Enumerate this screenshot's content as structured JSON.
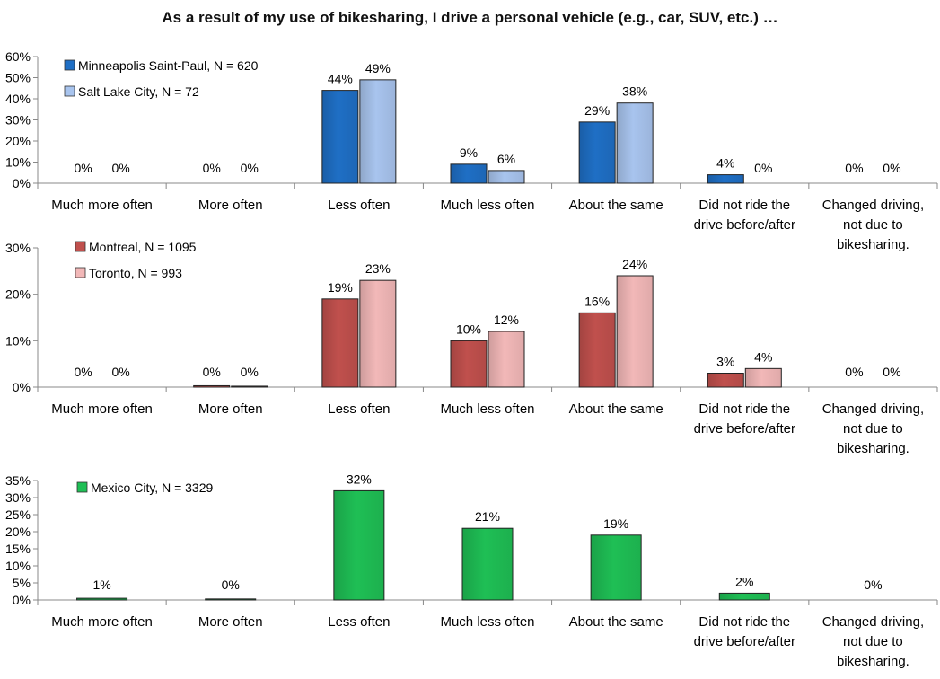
{
  "title": "As a result of my use of bikesharing, I drive a personal vehicle (e.g., car, SUV, etc.) …",
  "colors": {
    "msp": "#1f6fc5",
    "slc": "#a8c4ee",
    "montreal": "#c0504d",
    "toronto": "#f2b8b8",
    "mexico": "#1fbf55"
  },
  "chart_data": [
    {
      "type": "bar",
      "categories": [
        "Much more often",
        "More often",
        "Less often",
        "Much less often",
        "About the same",
        "Did not ride the drive before/after",
        "Changed driving, not due to bikesharing."
      ],
      "ylim": [
        0,
        60
      ],
      "yticks": [
        "0%",
        "10%",
        "20%",
        "30%",
        "40%",
        "50%",
        "60%"
      ],
      "ytick_values": [
        0,
        10,
        20,
        30,
        40,
        50,
        60
      ],
      "legend": "top-left",
      "series": [
        {
          "name": "Minneapolis Saint-Paul, N = 620",
          "values": [
            0,
            0,
            44,
            9,
            29,
            4,
            0
          ],
          "labels": [
            "0%",
            "0%",
            "44%",
            "9%",
            "29%",
            "4%",
            "0%"
          ]
        },
        {
          "name": "Salt Lake City, N = 72",
          "values": [
            0,
            0,
            49,
            6,
            38,
            0,
            0
          ],
          "labels": [
            "0%",
            "0%",
            "49%",
            "6%",
            "38%",
            "0%",
            "0%"
          ]
        }
      ]
    },
    {
      "type": "bar",
      "categories": [
        "Much more often",
        "More often",
        "Less often",
        "Much less often",
        "About the same",
        "Did not ride the drive before/after",
        "Changed driving, not due to bikesharing."
      ],
      "ylim": [
        0,
        30
      ],
      "yticks": [
        "0%",
        "10%",
        "20%",
        "30%"
      ],
      "ytick_values": [
        0,
        10,
        20,
        30
      ],
      "legend": "top-left",
      "series": [
        {
          "name": "Montreal, N = 1095",
          "values": [
            0,
            0.3,
            19,
            10,
            16,
            3,
            0
          ],
          "labels": [
            "0%",
            "0%",
            "19%",
            "10%",
            "16%",
            "3%",
            "0%"
          ]
        },
        {
          "name": "Toronto, N = 993",
          "values": [
            0,
            0.2,
            23,
            12,
            24,
            4,
            0
          ],
          "labels": [
            "0%",
            "0%",
            "23%",
            "12%",
            "24%",
            "4%",
            "0%"
          ]
        }
      ]
    },
    {
      "type": "bar",
      "categories": [
        "Much more often",
        "More often",
        "Less often",
        "Much less often",
        "About the same",
        "Did not ride the drive before/after",
        "Changed driving, not due to bikesharing."
      ],
      "ylim": [
        0,
        35
      ],
      "yticks": [
        "0%",
        "5%",
        "10%",
        "15%",
        "20%",
        "25%",
        "30%",
        "35%"
      ],
      "ytick_values": [
        0,
        5,
        10,
        15,
        20,
        25,
        30,
        35
      ],
      "legend": "top-left",
      "series": [
        {
          "name": "Mexico City, N = 3329",
          "values": [
            0.5,
            0.3,
            32,
            21,
            19,
            2,
            0
          ],
          "labels": [
            "1%",
            "0%",
            "32%",
            "21%",
            "19%",
            "2%",
            "0%"
          ]
        }
      ]
    }
  ]
}
